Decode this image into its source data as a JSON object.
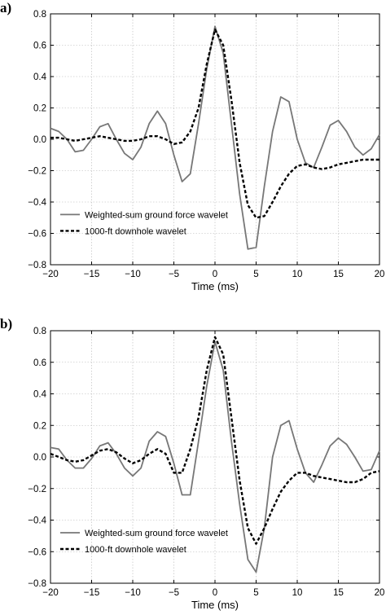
{
  "chart_data": [
    {
      "type": "line",
      "panel_label": "a)",
      "xlabel": "Time (ms)",
      "ylabel": "",
      "xlim": [
        -20,
        20
      ],
      "ylim": [
        -0.8,
        0.8
      ],
      "xticks": [
        -20,
        -15,
        -10,
        -5,
        0,
        5,
        10,
        15,
        20
      ],
      "yticks": [
        -0.8,
        -0.6,
        -0.4,
        -0.2,
        0.0,
        0.2,
        0.4,
        0.6,
        0.8
      ],
      "xtick_labels": [
        "−20",
        "−15",
        "−10",
        "−5",
        "0",
        "5",
        "10",
        "15",
        "20"
      ],
      "ytick_labels": [
        "−0.8",
        "−0.6",
        "−0.4",
        "−0.2",
        "0.0",
        "0.2",
        "0.4",
        "0.6",
        "0.8"
      ],
      "grid": true,
      "legend_position": "lower-left",
      "series": [
        {
          "name": "Weighted-sum ground force wavelet",
          "color": "#777777",
          "style": "solid",
          "x": [
            -20,
            -19,
            -18,
            -17,
            -16,
            -15,
            -14,
            -13,
            -12,
            -11,
            -10,
            -9,
            -8,
            -7,
            -6,
            -5,
            -4,
            -3,
            -2,
            -1,
            0,
            1,
            2,
            3,
            4,
            5,
            6,
            7,
            8,
            9,
            10,
            11,
            12,
            13,
            14,
            15,
            16,
            17,
            18,
            19,
            20
          ],
          "y": [
            0.07,
            0.05,
            0.0,
            -0.08,
            -0.07,
            0.0,
            0.08,
            0.1,
            0.0,
            -0.09,
            -0.13,
            -0.05,
            0.1,
            0.18,
            0.1,
            -0.1,
            -0.27,
            -0.22,
            0.1,
            0.45,
            0.72,
            0.55,
            0.1,
            -0.35,
            -0.7,
            -0.69,
            -0.3,
            0.05,
            0.27,
            0.24,
            0.0,
            -0.15,
            -0.18,
            -0.05,
            0.09,
            0.12,
            0.05,
            -0.05,
            -0.1,
            -0.06,
            0.03
          ]
        },
        {
          "name": "1000-ft downhole wavelet",
          "color": "#000000",
          "style": "dashed",
          "x": [
            -20,
            -19,
            -18,
            -17,
            -16,
            -15,
            -14,
            -13,
            -12,
            -11,
            -10,
            -9,
            -8,
            -7,
            -6,
            -5,
            -4,
            -3,
            -2,
            -1,
            0,
            1,
            2,
            3,
            4,
            5,
            6,
            7,
            8,
            9,
            10,
            11,
            12,
            13,
            14,
            15,
            16,
            17,
            18,
            19,
            20
          ],
          "y": [
            0.01,
            0.01,
            0.0,
            -0.01,
            0.0,
            0.01,
            0.02,
            0.01,
            0.0,
            -0.01,
            -0.01,
            0.0,
            0.02,
            0.02,
            0.0,
            -0.03,
            -0.02,
            0.05,
            0.2,
            0.48,
            0.7,
            0.6,
            0.25,
            -0.15,
            -0.42,
            -0.5,
            -0.49,
            -0.4,
            -0.3,
            -0.22,
            -0.17,
            -0.16,
            -0.18,
            -0.19,
            -0.18,
            -0.16,
            -0.15,
            -0.14,
            -0.13,
            -0.13,
            -0.13
          ]
        }
      ]
    },
    {
      "type": "line",
      "panel_label": "b)",
      "xlabel": "Time (ms)",
      "ylabel": "",
      "xlim": [
        -20,
        20
      ],
      "ylim": [
        -0.8,
        0.8
      ],
      "xticks": [
        -20,
        -15,
        -10,
        -5,
        0,
        5,
        10,
        15,
        20
      ],
      "yticks": [
        -0.8,
        -0.6,
        -0.4,
        -0.2,
        0.0,
        0.2,
        0.4,
        0.6,
        0.8
      ],
      "xtick_labels": [
        "−20",
        "−15",
        "−10",
        "−5",
        "0",
        "5",
        "10",
        "15",
        "20"
      ],
      "ytick_labels": [
        "−0.8",
        "−0.6",
        "−0.4",
        "−0.2",
        "0.0",
        "0.2",
        "0.4",
        "0.6",
        "0.8"
      ],
      "grid": true,
      "legend_position": "lower-left",
      "series": [
        {
          "name": "Weighted-sum ground force wavelet",
          "color": "#777777",
          "style": "solid",
          "x": [
            -20,
            -19,
            -18,
            -17,
            -16,
            -15,
            -14,
            -13,
            -12,
            -11,
            -10,
            -9,
            -8,
            -7,
            -6,
            -5,
            -4,
            -3,
            -2,
            -1,
            0,
            1,
            2,
            3,
            4,
            5,
            6,
            7,
            8,
            9,
            10,
            11,
            12,
            13,
            14,
            15,
            16,
            17,
            18,
            19,
            20
          ],
          "y": [
            0.06,
            0.05,
            -0.02,
            -0.07,
            -0.07,
            -0.01,
            0.07,
            0.09,
            0.02,
            -0.07,
            -0.12,
            -0.07,
            0.1,
            0.16,
            0.13,
            -0.04,
            -0.24,
            -0.24,
            0.1,
            0.45,
            0.73,
            0.55,
            0.1,
            -0.3,
            -0.65,
            -0.73,
            -0.45,
            0.0,
            0.2,
            0.23,
            0.05,
            -0.1,
            -0.16,
            -0.05,
            0.07,
            0.12,
            0.08,
            0.0,
            -0.09,
            -0.08,
            0.04
          ]
        },
        {
          "name": "1000-ft downhole wavelet",
          "color": "#000000",
          "style": "dashed",
          "x": [
            -20,
            -19,
            -18,
            -17,
            -16,
            -15,
            -14,
            -13,
            -12,
            -11,
            -10,
            -9,
            -8,
            -7,
            -6,
            -5,
            -4,
            -3,
            -2,
            -1,
            0,
            1,
            2,
            3,
            4,
            5,
            6,
            7,
            8,
            9,
            10,
            11,
            12,
            13,
            14,
            15,
            16,
            17,
            18,
            19,
            20
          ],
          "y": [
            0.02,
            0.0,
            -0.02,
            -0.03,
            -0.02,
            0.01,
            0.04,
            0.05,
            0.03,
            -0.01,
            -0.04,
            -0.02,
            0.02,
            0.05,
            0.02,
            -0.1,
            -0.1,
            0.05,
            0.25,
            0.55,
            0.76,
            0.65,
            0.25,
            -0.15,
            -0.45,
            -0.55,
            -0.45,
            -0.33,
            -0.22,
            -0.15,
            -0.1,
            -0.1,
            -0.12,
            -0.13,
            -0.14,
            -0.15,
            -0.16,
            -0.16,
            -0.14,
            -0.1,
            -0.09
          ]
        }
      ]
    }
  ]
}
